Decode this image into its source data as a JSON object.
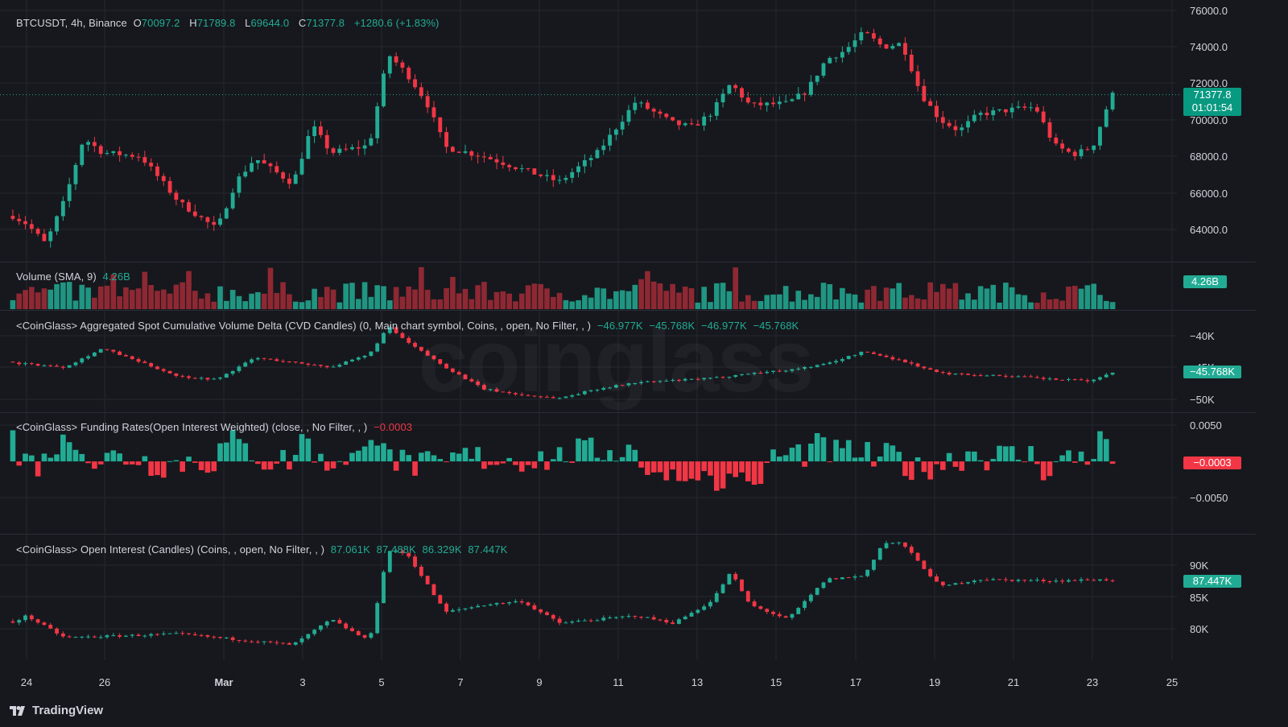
{
  "header": {
    "symbol": "BTCUSDT, 4h, Binance",
    "o_label": "O",
    "o_value": "70097.2",
    "h_label": "H",
    "h_value": "71789.8",
    "l_label": "L",
    "l_value": "69644.0",
    "c_label": "C",
    "c_value": "71377.8",
    "change": "+1280.6 (+1.83%)"
  },
  "price_tags": {
    "last_price": "71377.8",
    "countdown": "01:01:54",
    "volume": "4.26B",
    "cvd": "−45.768K",
    "funding": "−0.0003",
    "oi": "87.447K"
  },
  "indicators": {
    "volume": {
      "name": "Volume (SMA, 9)",
      "value": "4.26B"
    },
    "cvd": {
      "name": "<CoinGlass> Aggregated Spot Cumulative Volume Delta (CVD Candles) (0, Main chart symbol, Coins, , open, No Filter, , )",
      "values": [
        "−46.977K",
        "−45.768K",
        "−46.977K",
        "−45.768K"
      ]
    },
    "funding": {
      "name": "<CoinGlass> Funding Rates(Open Interest Weighted) (close, , No Filter, , )",
      "value": "−0.0003"
    },
    "oi": {
      "name": "<CoinGlass> Open Interest (Candles) (Coins, , open, No Filter, , )",
      "values": [
        "87.061K",
        "87.488K",
        "86.329K",
        "87.447K"
      ]
    }
  },
  "axes": {
    "price_ticks": [
      "76000.0",
      "74000.0",
      "72000.0",
      "70000.0",
      "68000.0",
      "66000.0",
      "64000.0"
    ],
    "cvd_ticks": [
      "−40K",
      "−45K",
      "−50K"
    ],
    "funding_ticks": [
      "0.0050",
      "−0.0050"
    ],
    "oi_ticks": [
      "90K",
      "85K",
      "80K"
    ],
    "dates": [
      "24",
      "26",
      "Mar",
      "3",
      "5",
      "7",
      "9",
      "11",
      "13",
      "15",
      "17",
      "19",
      "21",
      "23",
      "25"
    ]
  },
  "colors": {
    "up": "#22ab94",
    "down": "#f23645",
    "background": "#16181d",
    "grid": "#24272e"
  },
  "watermark": "coinglass",
  "footer": {
    "brand": "TradingView"
  },
  "chart_data": [
    {
      "type": "candlestick",
      "title": "BTCUSDT, 4h, Binance",
      "ylim": [
        62000,
        76000
      ],
      "x_range": [
        "Feb 24",
        "Mar 25"
      ],
      "keypoints": [
        {
          "x": "Feb 23",
          "y": 65500
        },
        {
          "x": "Feb 24",
          "y": 64300
        },
        {
          "x": "Feb 24",
          "y": 63200
        },
        {
          "x": "Feb 25",
          "y": 65600
        },
        {
          "x": "Feb 25",
          "y": 69000
        },
        {
          "x": "Feb 26",
          "y": 68200
        },
        {
          "x": "Feb 27",
          "y": 68000
        },
        {
          "x": "Feb 28",
          "y": 65500
        },
        {
          "x": "Feb 29",
          "y": 64000
        },
        {
          "x": "Feb 29",
          "y": 66600
        },
        {
          "x": "Mar 1",
          "y": 67900
        },
        {
          "x": "Mar 2",
          "y": 66500
        },
        {
          "x": "Mar 2",
          "y": 69700
        },
        {
          "x": "Mar 3",
          "y": 68200
        },
        {
          "x": "Mar 4",
          "y": 68600
        },
        {
          "x": "Mar 4",
          "y": 73600
        },
        {
          "x": "Mar 5",
          "y": 72500
        },
        {
          "x": "Mar 5",
          "y": 71000
        },
        {
          "x": "Mar 6",
          "y": 68500
        },
        {
          "x": "Mar 7",
          "y": 68000
        },
        {
          "x": "Mar 8",
          "y": 67300
        },
        {
          "x": "Mar 9",
          "y": 66600
        },
        {
          "x": "Mar 10",
          "y": 68200
        },
        {
          "x": "Mar 11",
          "y": 71000
        },
        {
          "x": "Mar 12",
          "y": 69800
        },
        {
          "x": "Mar 12",
          "y": 69600
        },
        {
          "x": "Mar 13",
          "y": 70400
        },
        {
          "x": "Mar 13",
          "y": 72000
        },
        {
          "x": "Mar 14",
          "y": 70800
        },
        {
          "x": "Mar 15",
          "y": 70900
        },
        {
          "x": "Mar 15",
          "y": 71600
        },
        {
          "x": "Mar 16",
          "y": 73300
        },
        {
          "x": "Mar 16",
          "y": 73800
        },
        {
          "x": "Mar 17",
          "y": 74800
        },
        {
          "x": "Mar 17",
          "y": 74000
        },
        {
          "x": "Mar 18",
          "y": 74200
        },
        {
          "x": "Mar 18",
          "y": 71400
        },
        {
          "x": "Mar 19",
          "y": 70000
        },
        {
          "x": "Mar 19",
          "y": 69400
        },
        {
          "x": "Mar 20",
          "y": 70300
        },
        {
          "x": "Mar 21",
          "y": 70600
        },
        {
          "x": "Mar 21",
          "y": 70700
        },
        {
          "x": "Mar 22",
          "y": 68600
        },
        {
          "x": "Mar 22",
          "y": 68100
        },
        {
          "x": "Mar 23",
          "y": 68500
        },
        {
          "x": "Mar 23",
          "y": 71378
        }
      ]
    },
    {
      "type": "bar",
      "title": "Volume (SMA, 9)",
      "last_value": "4.26B",
      "description": "Per-candle volume bars colored by candle direction"
    },
    {
      "type": "candlestick",
      "title": "<CoinGlass> Aggregated Spot Cumulative Volume Delta (CVD Candles)",
      "ylim": [
        -52000,
        -37500
      ],
      "keypoints": [
        {
          "x": "Feb 23",
          "y": -44000
        },
        {
          "x": "Feb 25",
          "y": -45000
        },
        {
          "x": "Feb 26",
          "y": -42000
        },
        {
          "x": "Feb 28",
          "y": -46500
        },
        {
          "x": "Feb 29",
          "y": -47000
        },
        {
          "x": "Mar 1",
          "y": -43500
        },
        {
          "x": "Mar 3",
          "y": -45000
        },
        {
          "x": "Mar 4",
          "y": -43000
        },
        {
          "x": "Mar 4",
          "y": -38500
        },
        {
          "x": "Mar 5",
          "y": -41000
        },
        {
          "x": "Mar 6",
          "y": -45000
        },
        {
          "x": "Mar 7",
          "y": -48500
        },
        {
          "x": "Mar 8",
          "y": -49500
        },
        {
          "x": "Mar 9",
          "y": -50000
        },
        {
          "x": "Mar 10",
          "y": -48500
        },
        {
          "x": "Mar 11",
          "y": -47500
        },
        {
          "x": "Mar 13",
          "y": -46800
        },
        {
          "x": "Mar 14",
          "y": -46000
        },
        {
          "x": "Mar 15",
          "y": -45500
        },
        {
          "x": "Mar 16",
          "y": -44500
        },
        {
          "x": "Mar 17",
          "y": -42500
        },
        {
          "x": "Mar 18",
          "y": -44000
        },
        {
          "x": "Mar 19",
          "y": -46000
        },
        {
          "x": "Mar 21",
          "y": -46500
        },
        {
          "x": "Mar 22",
          "y": -47000
        },
        {
          "x": "Mar 23",
          "y": -47200
        },
        {
          "x": "Mar 23",
          "y": -45768
        }
      ]
    },
    {
      "type": "bar",
      "title": "<CoinGlass> Funding Rates(Open Interest Weighted)",
      "ylim": [
        -0.009,
        0.0055
      ],
      "last_value": -0.0003,
      "description": "Positive/negative funding histogram"
    },
    {
      "type": "candlestick",
      "title": "<CoinGlass> Open Interest (Candles)",
      "ylim": [
        77500,
        93000
      ],
      "keypoints": [
        {
          "x": "Feb 23",
          "y": 80000
        },
        {
          "x": "Feb 24",
          "y": 82500
        },
        {
          "x": "Feb 25",
          "y": 79500
        },
        {
          "x": "Feb 28",
          "y": 80000
        },
        {
          "x": "Mar 1",
          "y": 79000
        },
        {
          "x": "Mar 2",
          "y": 78500
        },
        {
          "x": "Mar 3",
          "y": 82000
        },
        {
          "x": "Mar 4",
          "y": 79000
        },
        {
          "x": "Mar 4",
          "y": 91500
        },
        {
          "x": "Mar 5",
          "y": 91000
        },
        {
          "x": "Mar 6",
          "y": 83000
        },
        {
          "x": "Mar 7",
          "y": 84000
        },
        {
          "x": "Mar 8",
          "y": 84500
        },
        {
          "x": "Mar 9",
          "y": 81500
        },
        {
          "x": "Mar 11",
          "y": 82500
        },
        {
          "x": "Mar 12",
          "y": 81500
        },
        {
          "x": "Mar 13",
          "y": 84500
        },
        {
          "x": "Mar 13",
          "y": 88500
        },
        {
          "x": "Mar 14",
          "y": 84000
        },
        {
          "x": "Mar 15",
          "y": 82000
        },
        {
          "x": "Mar 16",
          "y": 87500
        },
        {
          "x": "Mar 17",
          "y": 88000
        },
        {
          "x": "Mar 17",
          "y": 92500
        },
        {
          "x": "Mar 18",
          "y": 92500
        },
        {
          "x": "Mar 19",
          "y": 86500
        },
        {
          "x": "Mar 20",
          "y": 87500
        },
        {
          "x": "Mar 22",
          "y": 87300
        },
        {
          "x": "Mar 23",
          "y": 87447
        }
      ]
    }
  ]
}
